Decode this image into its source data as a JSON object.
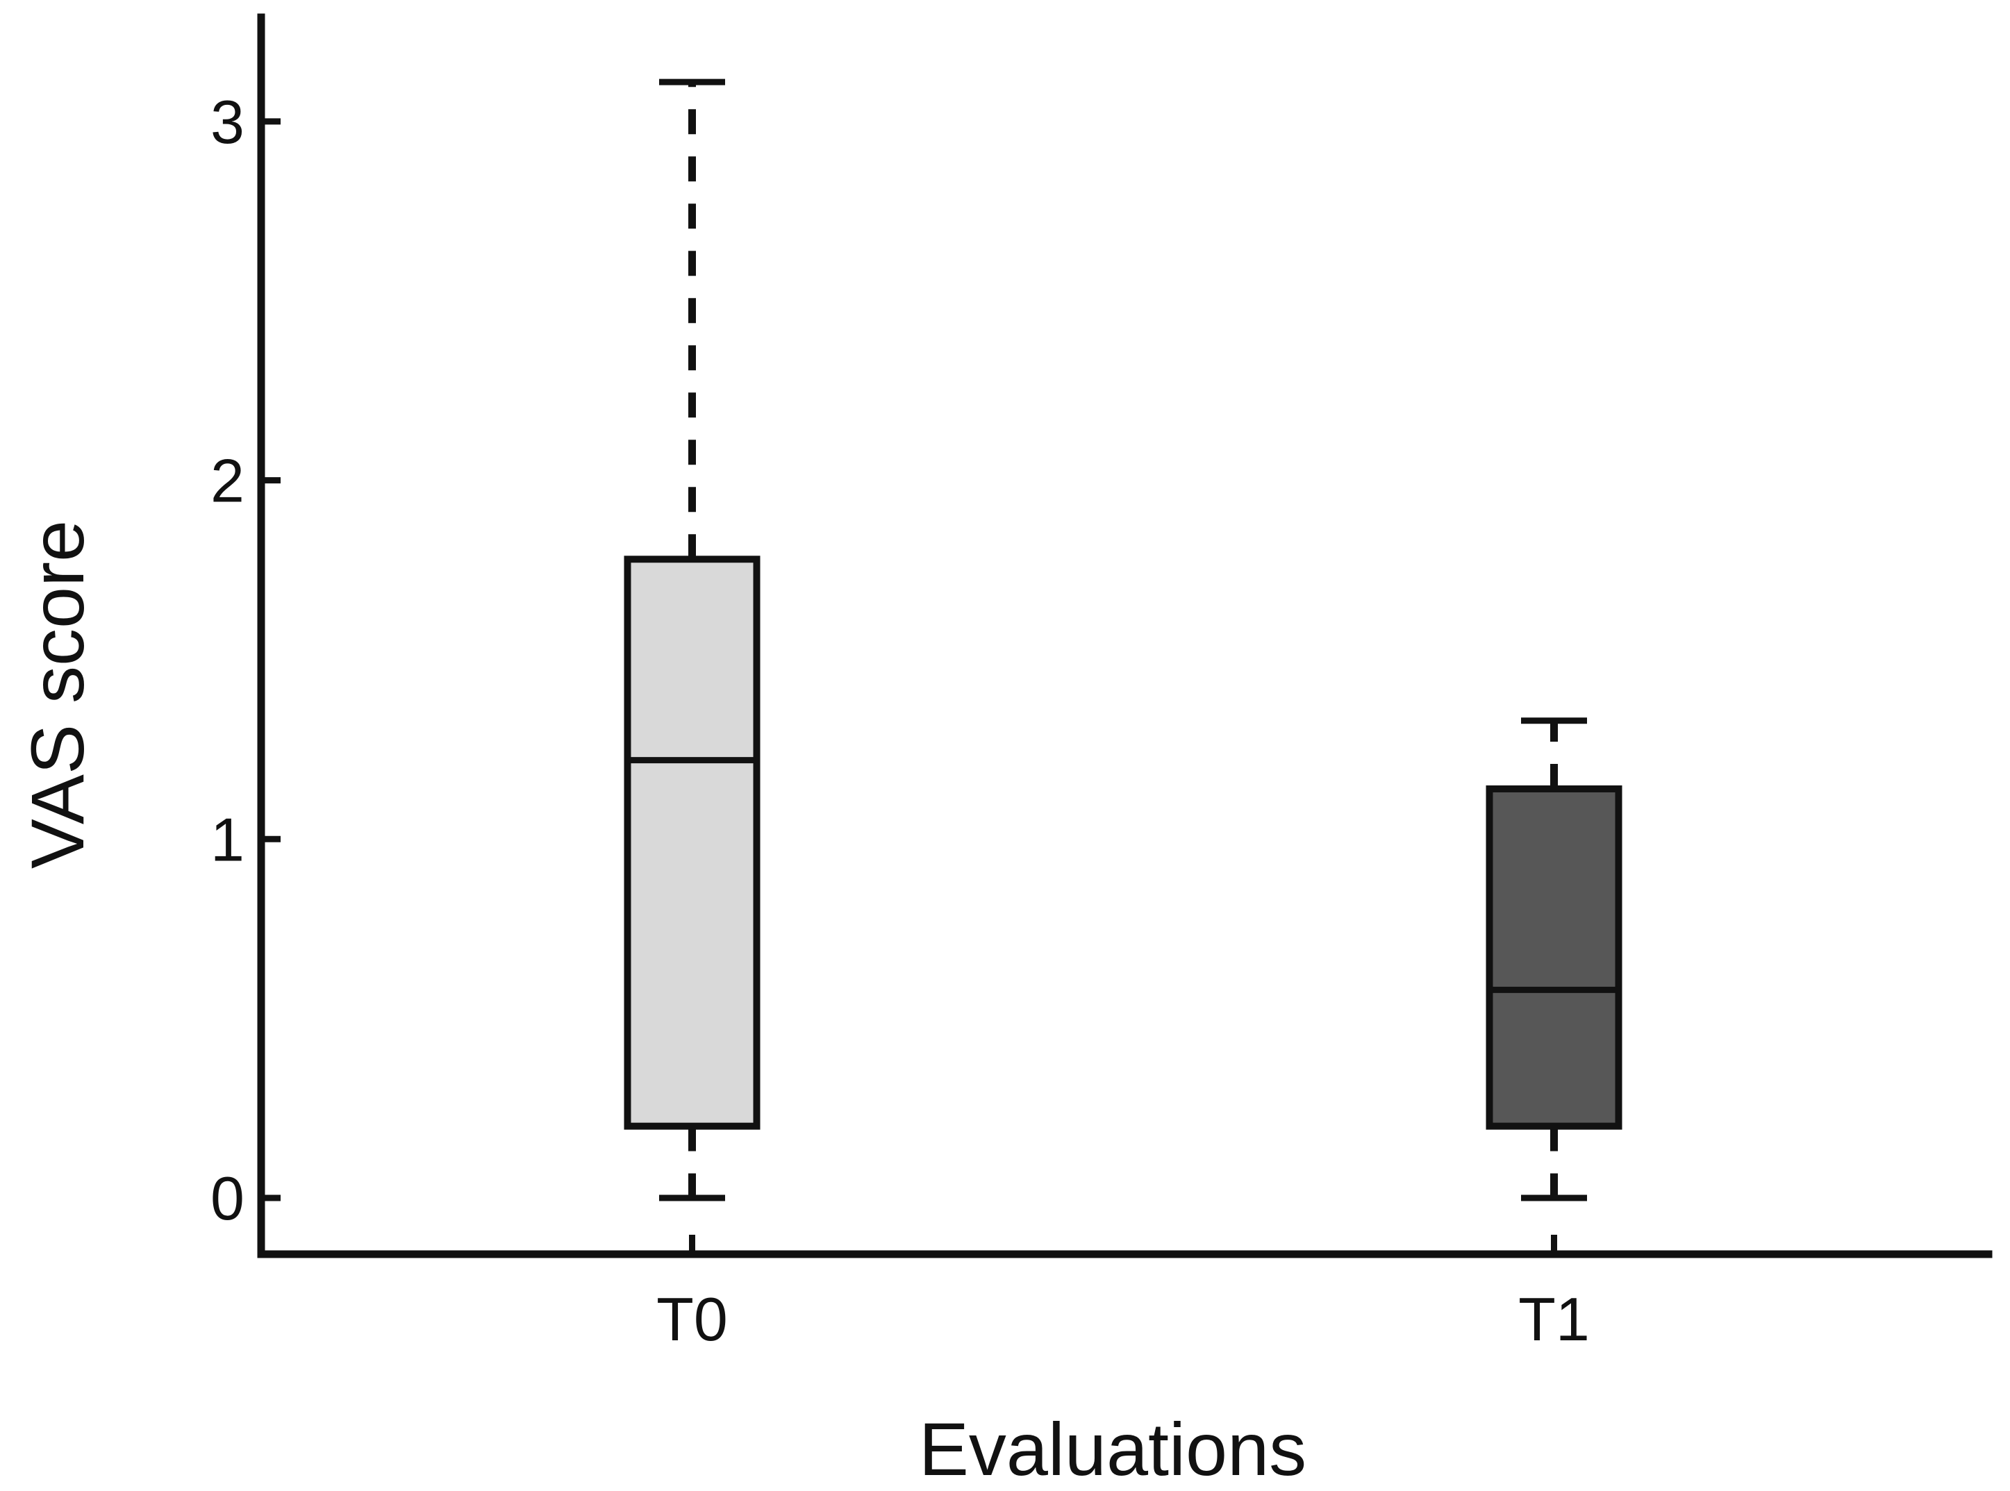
{
  "chart_data": {
    "type": "boxplot",
    "title": "",
    "xlabel": "Evaluations",
    "ylabel": "VAS score",
    "categories": [
      "T0",
      "T1"
    ],
    "yticks": [
      0,
      1,
      2,
      3
    ],
    "ylim": [
      -0.16,
      3.45
    ],
    "grid": false,
    "legend": "none",
    "whisker_style": "dashed",
    "line_color": "#111111",
    "series": [
      {
        "name": "T0",
        "min": 0.0,
        "q1": 0.2,
        "median": 1.22,
        "q3": 1.78,
        "max": 3.11,
        "fill": "#d9d9d9"
      },
      {
        "name": "T1",
        "min": 0.0,
        "q1": 0.2,
        "median": 0.58,
        "q3": 1.14,
        "max": 1.33,
        "fill": "#575757"
      }
    ]
  }
}
